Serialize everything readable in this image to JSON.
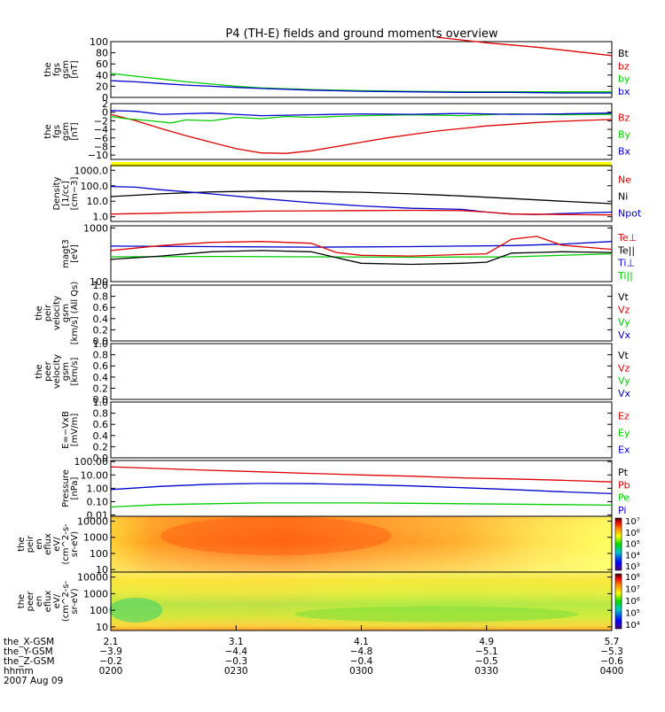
{
  "title": "P4 (TH-E) fields and ground moments overview",
  "colors": {
    "black": "#000000",
    "red": "#dd0000",
    "green": "#00cc00",
    "blue": "#0000cc",
    "yellow": "#ffff00"
  },
  "chart_data": [
    {
      "type": "line",
      "id": "fgs1",
      "ylabel": [
        "the",
        "fgs",
        "gsm",
        "[nT]"
      ],
      "ylim": [
        0,
        100
      ],
      "yticks": [
        "0",
        "20",
        "40",
        "60",
        "80",
        "100"
      ],
      "legend": [
        {
          "label": "Bt",
          "color": "#000000"
        },
        {
          "label": "bz",
          "color": "#dd0000"
        },
        {
          "label": "by",
          "color": "#00cc00"
        },
        {
          "label": "bx",
          "color": "#0000cc"
        }
      ],
      "series": [
        {
          "name": "Bt/bz",
          "color": "#dd0000",
          "x": [
            0.65,
            0.75,
            0.85,
            0.93,
            1.0
          ],
          "y": [
            108,
            98,
            90,
            82,
            75
          ]
        },
        {
          "name": "by",
          "color": "#00cc00",
          "x": [
            0,
            0.05,
            0.1,
            0.15,
            0.2,
            0.25,
            0.3,
            0.4,
            0.5,
            0.6,
            0.7,
            0.8,
            0.9,
            1.0
          ],
          "y": [
            43,
            38,
            33,
            28,
            24,
            20,
            17,
            14,
            12,
            11,
            10,
            10,
            10,
            10
          ]
        },
        {
          "name": "bx",
          "color": "#0000cc",
          "x": [
            0,
            0.05,
            0.1,
            0.15,
            0.2,
            0.25,
            0.3,
            0.4,
            0.5,
            0.6,
            0.7,
            0.8,
            0.9,
            1.0
          ],
          "y": [
            30,
            28,
            25,
            22,
            20,
            18,
            16,
            13,
            11,
            10,
            9,
            9,
            8,
            8
          ]
        }
      ]
    },
    {
      "type": "line",
      "id": "fgs2",
      "ylabel": [
        "the",
        "fgs",
        "gsm",
        "[nT]"
      ],
      "ylim": [
        -11,
        2
      ],
      "yticks": [
        "2",
        "0",
        "−2",
        "−4",
        "−6",
        "−8",
        "−10"
      ],
      "ytick_values": [
        2,
        0,
        -2,
        -4,
        -6,
        -8,
        -10
      ],
      "legend": [
        {
          "label": "Bz",
          "color": "#dd0000"
        },
        {
          "label": "By",
          "color": "#00cc00"
        },
        {
          "label": "Bx",
          "color": "#0000cc"
        }
      ],
      "series": [
        {
          "name": "Bz",
          "color": "#dd0000",
          "x": [
            0,
            0.05,
            0.1,
            0.15,
            0.2,
            0.25,
            0.3,
            0.35,
            0.4,
            0.45,
            0.5,
            0.55,
            0.6,
            0.65,
            0.7,
            0.75,
            0.8,
            0.85,
            0.9,
            0.95,
            1.0
          ],
          "y": [
            -0.5,
            -2.0,
            -3.8,
            -5.5,
            -7.0,
            -8.5,
            -9.5,
            -9.6,
            -9.0,
            -8.0,
            -7.0,
            -6.0,
            -5.2,
            -4.4,
            -3.8,
            -3.2,
            -2.8,
            -2.4,
            -2.1,
            -1.9,
            -1.7
          ]
        },
        {
          "name": "By",
          "color": "#00cc00",
          "x": [
            0,
            0.03,
            0.08,
            0.12,
            0.15,
            0.2,
            0.25,
            0.3,
            0.35,
            0.4,
            0.5,
            0.6,
            0.7,
            0.8,
            0.9,
            1.0
          ],
          "y": [
            -1.0,
            -1.5,
            -2.0,
            -2.5,
            -1.8,
            -2.0,
            -1.2,
            -1.5,
            -1.0,
            -1.2,
            -0.8,
            -0.6,
            -0.8,
            -0.4,
            -0.6,
            -0.5
          ]
        },
        {
          "name": "Bx",
          "color": "#0000cc",
          "x": [
            0,
            0.05,
            0.1,
            0.2,
            0.3,
            0.4,
            0.5,
            0.6,
            0.7,
            0.8,
            0.9,
            1.0
          ],
          "y": [
            0.4,
            0.2,
            -0.5,
            -0.2,
            -0.8,
            -0.6,
            -0.4,
            -0.5,
            -0.3,
            -0.5,
            -0.4,
            -0.2
          ]
        }
      ]
    },
    {
      "type": "line",
      "id": "density",
      "scale": "log",
      "ylabel": [
        "Density",
        "[1/cc]",
        "[cm−3]"
      ],
      "ylim": [
        0.5,
        2000
      ],
      "yticks": [
        "1.0",
        "10.0",
        "100.0",
        "1000.0"
      ],
      "ytick_values": [
        1,
        10,
        100,
        1000
      ],
      "legend": [
        {
          "label": "Ne",
          "color": "#dd0000"
        },
        {
          "label": "Ni",
          "color": "#000000"
        },
        {
          "label": "Npot",
          "color": "#0000cc"
        }
      ],
      "series": [
        {
          "name": "Ni",
          "color": "#000000",
          "x": [
            0,
            0.1,
            0.2,
            0.3,
            0.4,
            0.5,
            0.6,
            0.7,
            0.8,
            0.9,
            1.0
          ],
          "y": [
            20,
            30,
            40,
            45,
            43,
            38,
            30,
            22,
            15,
            10,
            7
          ]
        },
        {
          "name": "Npot",
          "color": "#0000cc",
          "x": [
            0,
            0.05,
            0.1,
            0.2,
            0.3,
            0.4,
            0.5,
            0.6,
            0.7,
            0.75,
            0.8,
            0.85,
            0.9,
            1.0
          ],
          "y": [
            90,
            80,
            55,
            30,
            15,
            8,
            5,
            3.5,
            3,
            2,
            1.5,
            1.4,
            1.6,
            2
          ]
        },
        {
          "name": "Ne",
          "color": "#dd0000",
          "x": [
            0,
            0.1,
            0.2,
            0.3,
            0.4,
            0.5,
            0.6,
            0.7,
            0.75,
            0.8,
            0.9,
            1.0
          ],
          "y": [
            1.5,
            1.7,
            2.0,
            2.3,
            2.4,
            2.5,
            2.6,
            2.5,
            2.0,
            1.5,
            1.4,
            1.3
          ]
        }
      ]
    },
    {
      "type": "line",
      "id": "temperature",
      "scale": "log",
      "ylabel": [
        "magt3",
        "[eV]"
      ],
      "ylim": [
        100,
        1100
      ],
      "yticks": [
        "100",
        "1000"
      ],
      "ytick_values": [
        100,
        1000
      ],
      "legend": [
        {
          "label": "Te⊥",
          "color": "#dd0000"
        },
        {
          "label": "Te||",
          "color": "#000000"
        },
        {
          "label": "Ti⊥",
          "color": "#0000cc"
        },
        {
          "label": "Ti||",
          "color": "#00cc00"
        }
      ],
      "series": [
        {
          "name": "Ti⊥",
          "color": "#0000cc",
          "x": [
            0,
            0.2,
            0.4,
            0.6,
            0.8,
            0.9,
            1.0
          ],
          "y": [
            460,
            450,
            440,
            450,
            470,
            500,
            560
          ]
        },
        {
          "name": "Ti||",
          "color": "#00cc00",
          "x": [
            0,
            0.2,
            0.4,
            0.6,
            0.8,
            0.9,
            1.0
          ],
          "y": [
            290,
            295,
            290,
            285,
            290,
            310,
            330
          ]
        },
        {
          "name": "Te⊥",
          "color": "#dd0000",
          "x": [
            0,
            0.1,
            0.2,
            0.3,
            0.4,
            0.45,
            0.5,
            0.6,
            0.7,
            0.75,
            0.8,
            0.85,
            0.9,
            1.0
          ],
          "y": [
            380,
            470,
            540,
            560,
            520,
            350,
            310,
            300,
            320,
            330,
            620,
            700,
            480,
            400
          ]
        },
        {
          "name": "Te||",
          "color": "#000000",
          "x": [
            0,
            0.1,
            0.2,
            0.3,
            0.4,
            0.45,
            0.5,
            0.6,
            0.7,
            0.75,
            0.8,
            0.85,
            0.9,
            1.0
          ],
          "y": [
            260,
            300,
            360,
            380,
            360,
            280,
            220,
            210,
            220,
            230,
            340,
            350,
            360,
            350
          ]
        }
      ]
    },
    {
      "type": "line",
      "id": "peir-velocity",
      "ylabel": [
        "the",
        "peir",
        "velocity",
        "gsm",
        "[km/s] (All Qs)"
      ],
      "ylim": [
        0,
        1
      ],
      "yticks": [
        "0.0",
        "0.2",
        "0.4",
        "0.6",
        "0.8",
        "1.0"
      ],
      "legend": [
        {
          "label": "Vt",
          "color": "#000000"
        },
        {
          "label": "Vz",
          "color": "#dd0000"
        },
        {
          "label": "Vy",
          "color": "#00cc00"
        },
        {
          "label": "Vx",
          "color": "#0000cc"
        }
      ],
      "series": []
    },
    {
      "type": "line",
      "id": "peer-velocity",
      "ylabel": [
        "the",
        "peer",
        "velocity",
        "gsm",
        "[km/s]"
      ],
      "ylim": [
        0,
        1
      ],
      "yticks": [
        "0.0",
        "0.2",
        "0.4",
        "0.6",
        "0.8",
        "1.0"
      ],
      "legend": [
        {
          "label": "Vt",
          "color": "#000000"
        },
        {
          "label": "Vz",
          "color": "#dd0000"
        },
        {
          "label": "Vy",
          "color": "#00cc00"
        },
        {
          "label": "Vx",
          "color": "#0000cc"
        }
      ],
      "series": []
    },
    {
      "type": "line",
      "id": "efield",
      "ylabel": [
        "E=−VxB",
        "[mV/m]"
      ],
      "ylim": [
        0,
        1
      ],
      "yticks": [
        "0.0",
        "0.2",
        "0.4",
        "0.6",
        "0.8",
        "1.0"
      ],
      "legend": [
        {
          "label": "Ez",
          "color": "#dd0000"
        },
        {
          "label": "Ey",
          "color": "#00cc00"
        },
        {
          "label": "Ex",
          "color": "#0000cc"
        }
      ],
      "series": []
    },
    {
      "type": "line",
      "id": "pressure",
      "scale": "log",
      "ylabel": [
        "Pressure",
        "[nPa]"
      ],
      "ylim": [
        0.008,
        120
      ],
      "yticks": [
        "0.01",
        "0.10",
        "1.00",
        "10.00",
        "100.00"
      ],
      "ytick_values": [
        0.01,
        0.1,
        1,
        10,
        100
      ],
      "legend": [
        {
          "label": "Pt",
          "color": "#000000"
        },
        {
          "label": "Pb",
          "color": "#dd0000"
        },
        {
          "label": "Pe",
          "color": "#00cc00"
        },
        {
          "label": "Pi",
          "color": "#0000cc"
        }
      ],
      "series": [
        {
          "name": "Pt/Pb",
          "color": "#dd0000",
          "x": [
            0,
            0.1,
            0.2,
            0.3,
            0.4,
            0.5,
            0.6,
            0.7,
            0.8,
            0.9,
            1.0
          ],
          "y": [
            40,
            30,
            22,
            17,
            13,
            10,
            8,
            6,
            5,
            4,
            3
          ]
        },
        {
          "name": "Pi",
          "color": "#0000cc",
          "x": [
            0,
            0.1,
            0.2,
            0.3,
            0.4,
            0.5,
            0.6,
            0.7,
            0.8,
            0.9,
            1.0
          ],
          "y": [
            0.8,
            1.4,
            2.0,
            2.3,
            2.2,
            1.9,
            1.5,
            1.1,
            0.8,
            0.55,
            0.4
          ]
        },
        {
          "name": "Pe",
          "color": "#00cc00",
          "x": [
            0,
            0.1,
            0.2,
            0.3,
            0.4,
            0.5,
            0.6,
            0.7,
            0.8,
            0.9,
            1.0
          ],
          "y": [
            0.04,
            0.06,
            0.07,
            0.08,
            0.08,
            0.08,
            0.075,
            0.07,
            0.065,
            0.06,
            0.055
          ]
        }
      ]
    },
    {
      "type": "heatmap",
      "id": "peir-eflux",
      "scale": "log",
      "ylabel": [
        "the",
        "peir",
        "en",
        "eflux",
        "eV/",
        "(cm^2-s-",
        "sr-eV)"
      ],
      "ylim": [
        7,
        20000
      ],
      "yticks": [
        "10",
        "100",
        "1000",
        "10000"
      ],
      "ytick_values": [
        10,
        100,
        1000,
        10000
      ],
      "colorbar": {
        "labels": [
          "10³",
          "10⁴",
          "10⁵",
          "10⁶",
          "10⁷"
        ]
      }
    },
    {
      "type": "heatmap",
      "id": "peer-eflux",
      "scale": "log",
      "ylabel": [
        "the",
        "peer",
        "en",
        "eflux",
        "eV/",
        "(cm^2-s-",
        "sr-eV)"
      ],
      "ylim": [
        6,
        20000
      ],
      "yticks": [
        "10",
        "100",
        "1000",
        "10000"
      ],
      "ytick_values": [
        10,
        100,
        1000,
        10000
      ],
      "colorbar": {
        "labels": [
          "10⁴",
          "10⁵",
          "10⁶",
          "10⁷",
          "10⁸"
        ]
      }
    }
  ],
  "bottom_axis": {
    "rows": [
      {
        "label": "the_X-GSM",
        "values": [
          "2.1",
          "3.1",
          "4.1",
          "4.9",
          "5.7"
        ]
      },
      {
        "label": "the_Y-GSM",
        "values": [
          "−3.9",
          "−4.4",
          "−4.8",
          "−5.1",
          "−5.3"
        ]
      },
      {
        "label": "the_Z-GSM",
        "values": [
          "−0.2",
          "−0.3",
          "−0.4",
          "−0.5",
          "−0.6"
        ]
      },
      {
        "label": "hhmm",
        "values": [
          "0200",
          "0230",
          "0300",
          "0330",
          "0400"
        ]
      }
    ],
    "date": "2007 Aug 09"
  }
}
